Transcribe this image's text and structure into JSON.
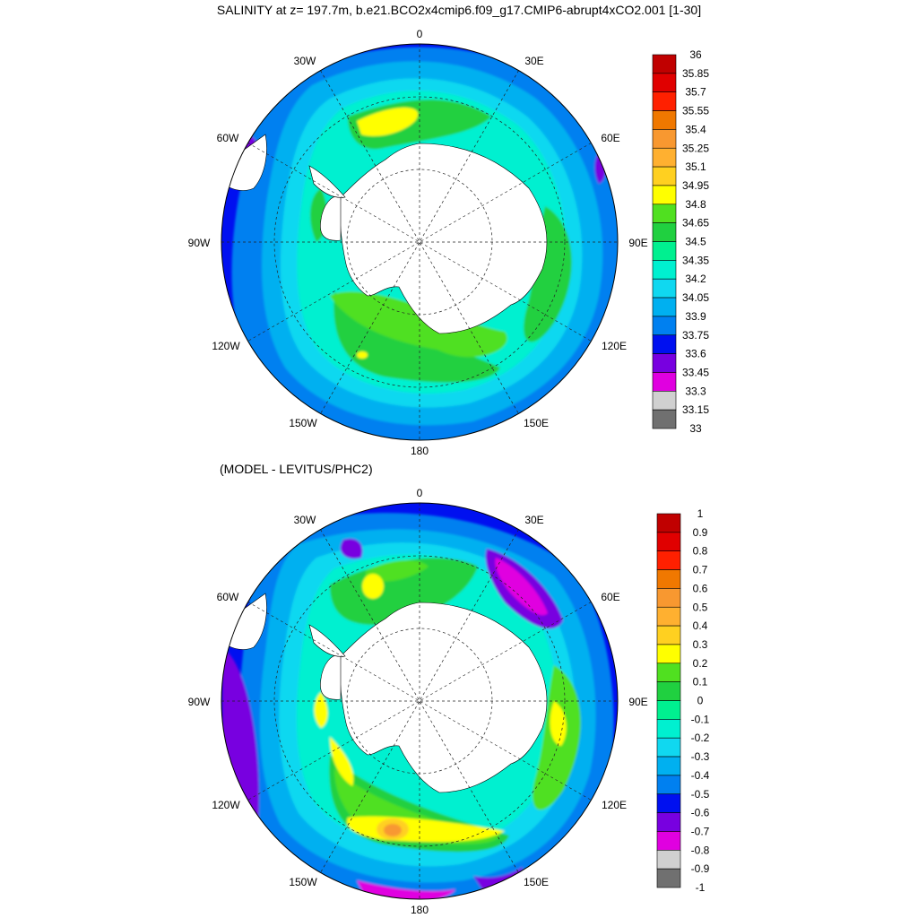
{
  "figure": {
    "title": "SALINITY at z= 197.7m, b.e21.BCO2x4cmip6.f09_g17.CMIP6-abrupt4xCO2.001 [1-30]",
    "subtitle": "(MODEL - LEVITUS/PHC2)"
  },
  "longitude_labels": [
    "0",
    "30E",
    "60E",
    "90E",
    "120E",
    "150E",
    "180",
    "150W",
    "120W",
    "90W",
    "60W",
    "30W"
  ],
  "panels": [
    {
      "id": "salinity",
      "colorbar": {
        "labels": [
          "36",
          "35.85",
          "35.7",
          "35.55",
          "35.4",
          "35.25",
          "35.1",
          "34.95",
          "34.8",
          "34.65",
          "34.5",
          "34.35",
          "34.2",
          "34.05",
          "33.9",
          "33.75",
          "33.6",
          "33.45",
          "33.3",
          "33.15",
          "33"
        ],
        "colors": [
          "#c00000",
          "#e00000",
          "#ff2000",
          "#f07800",
          "#f89830",
          "#ffb030",
          "#ffd020",
          "#ffff00",
          "#50e020",
          "#20d040",
          "#00f090",
          "#00f0d0",
          "#10d8f0",
          "#00b0f0",
          "#0080f0",
          "#0010f0",
          "#7800e0",
          "#e000e0",
          "#d0d0d0",
          "#707070"
        ]
      }
    },
    {
      "id": "difference",
      "colorbar": {
        "labels": [
          "1",
          "0.9",
          "0.8",
          "0.7",
          "0.6",
          "0.5",
          "0.4",
          "0.3",
          "0.2",
          "0.1",
          "0",
          "-0.1",
          "-0.2",
          "-0.3",
          "-0.4",
          "-0.5",
          "-0.6",
          "-0.7",
          "-0.8",
          "-0.9",
          "-1"
        ],
        "colors": [
          "#c00000",
          "#e00000",
          "#ff2000",
          "#f07800",
          "#f89830",
          "#ffb030",
          "#ffd020",
          "#ffff00",
          "#50e020",
          "#20d040",
          "#00f090",
          "#00f0d0",
          "#10d8f0",
          "#00b0f0",
          "#0080f0",
          "#0010f0",
          "#7800e0",
          "#e000e0",
          "#d0d0d0",
          "#707070"
        ]
      }
    }
  ]
}
